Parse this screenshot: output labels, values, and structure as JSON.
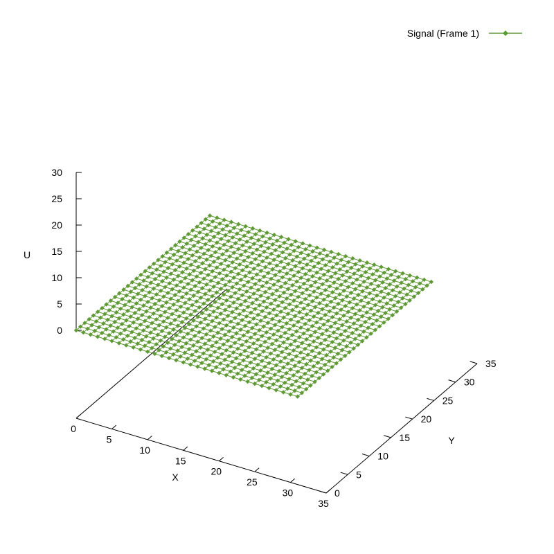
{
  "chart_data": {
    "type": "surface",
    "legend": {
      "label": "Signal (Frame 1)",
      "position": "top-right",
      "marker": "filled-diamond-with-line"
    },
    "series_color": "#5f9a36",
    "xlabel": "X",
    "ylabel": "Y",
    "zlabel": "U",
    "xlim": [
      0,
      35
    ],
    "ylim": [
      0,
      35
    ],
    "zlim": [
      0,
      30
    ],
    "xticks": [
      0,
      5,
      10,
      15,
      20,
      25,
      30,
      35
    ],
    "yticks": [
      0,
      5,
      10,
      15,
      20,
      25,
      30,
      35
    ],
    "zticks": [
      0,
      5,
      10,
      15,
      20,
      25,
      30
    ],
    "grid": false,
    "surface": {
      "x_range": [
        0,
        31
      ],
      "y_range": [
        0,
        31
      ],
      "step": 1,
      "value": 0
    }
  }
}
